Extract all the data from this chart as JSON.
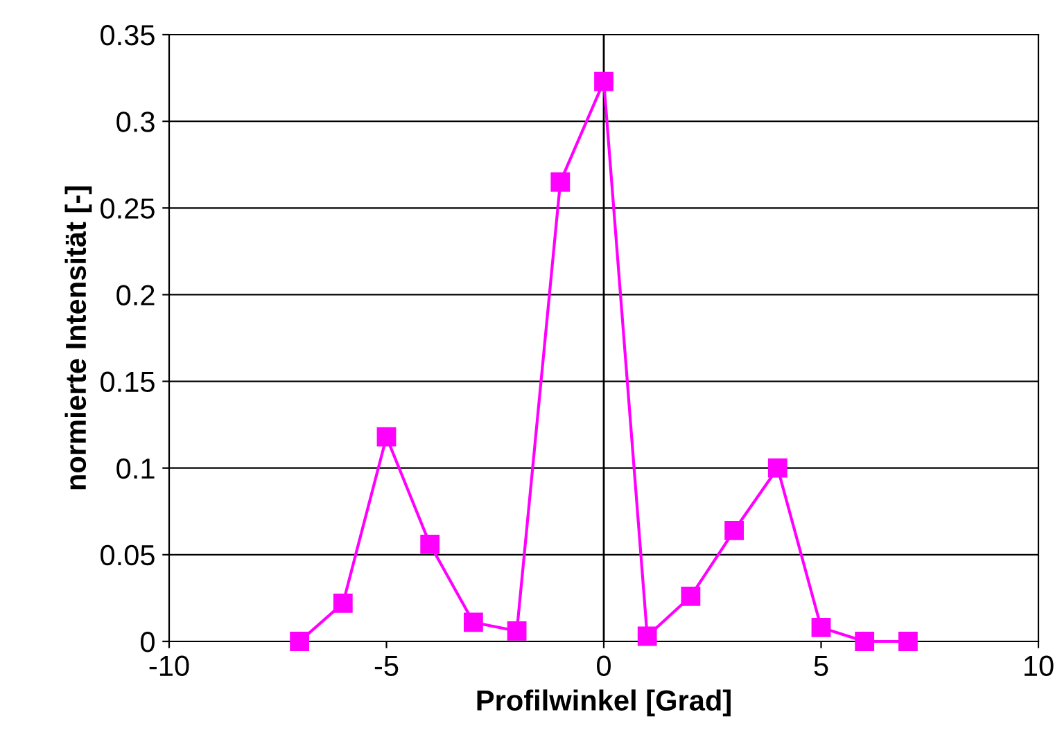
{
  "chart_data": {
    "type": "line",
    "xlabel": "Profilwinkel [Grad]",
    "ylabel": "normierte Intensität [-]",
    "x": [
      -7,
      -6,
      -5,
      -4,
      -3,
      -2,
      -1,
      0,
      1,
      2,
      3,
      4,
      5,
      6,
      7
    ],
    "series": [
      {
        "color": "#ff00ff",
        "values": [
          0.0,
          0.022,
          0.118,
          0.056,
          0.011,
          0.006,
          0.265,
          0.323,
          0.003,
          0.026,
          0.064,
          0.1,
          0.008,
          0.0,
          0.0
        ]
      }
    ],
    "xlim": [
      -10,
      10
    ],
    "xticks": [
      -10,
      -5,
      0,
      5,
      10
    ],
    "ylim": [
      0,
      0.35
    ],
    "yticks": [
      0,
      0.05,
      0.1,
      0.15,
      0.2,
      0.25,
      0.3,
      0.35
    ],
    "ref_lines": [
      {
        "axis": "x",
        "value": 0,
        "label": null,
        "color": "#000000"
      }
    ],
    "grid": "y",
    "marker": "square",
    "line_style": "solid",
    "legend": false
  }
}
